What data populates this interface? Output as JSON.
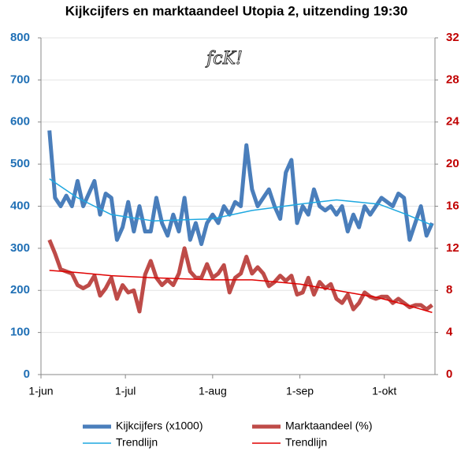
{
  "chart_data": {
    "type": "line",
    "title": "Kijkcijfers en marktaandeel Utopia 2,  uitzending 19:30",
    "logo": "fcK!",
    "x": [
      3,
      5,
      7,
      9,
      11,
      13,
      15,
      17,
      19,
      21,
      23,
      25,
      27,
      29,
      31,
      33,
      35,
      37,
      39,
      41,
      43,
      45,
      47,
      49,
      51,
      53,
      55,
      57,
      59,
      61,
      63,
      65,
      67,
      69,
      71,
      73,
      75,
      77,
      79,
      81,
      83,
      85,
      87,
      89,
      91,
      93,
      95,
      97,
      99,
      101,
      103,
      105,
      107,
      109,
      111,
      113,
      115,
      117,
      119,
      121,
      123,
      125,
      127,
      129,
      131,
      133,
      135,
      137,
      139
    ],
    "xlim": [
      0,
      140
    ],
    "xticks": [
      {
        "value": 0,
        "label": "1-jun"
      },
      {
        "value": 30,
        "label": "1-jul"
      },
      {
        "value": 61,
        "label": "1-aug"
      },
      {
        "value": 92,
        "label": "1-sep"
      },
      {
        "value": 122,
        "label": "1-okt"
      }
    ],
    "ylim": [
      0,
      800
    ],
    "yticks": [
      0,
      100,
      200,
      300,
      400,
      500,
      600,
      700,
      800
    ],
    "y2lim": [
      0,
      32
    ],
    "y2ticks": [
      0,
      4,
      8,
      12,
      16,
      20,
      24,
      28,
      32
    ],
    "y_color": "#1f6fb5",
    "y2_color": "#c00000",
    "grid": true,
    "legend": "bottom",
    "series": [
      {
        "name": "Kijkcijfers (x1000)",
        "color": "#4a7ebb",
        "width": 5,
        "values": [
          580,
          420,
          400,
          425,
          400,
          460,
          400,
          430,
          460,
          380,
          430,
          420,
          320,
          350,
          410,
          340,
          400,
          340,
          340,
          420,
          360,
          330,
          380,
          340,
          420,
          320,
          360,
          310,
          360,
          380,
          360,
          400,
          380,
          410,
          400,
          545,
          440,
          400,
          420,
          440,
          400,
          370,
          480,
          510,
          360,
          400,
          380,
          440,
          400,
          390,
          400,
          380,
          400,
          340,
          380,
          350,
          400,
          380,
          400,
          420,
          410,
          400,
          430,
          420,
          320,
          360,
          400,
          330,
          360
        ]
      },
      {
        "name": "Marktaandeel (%)",
        "color": "#be4b48",
        "width": 5,
        "axis": "y2",
        "values": [
          12.8,
          11.5,
          10,
          9.8,
          9.6,
          8.5,
          8.2,
          8.5,
          9.4,
          7.5,
          8.2,
          9.2,
          7.2,
          8.5,
          7.8,
          8,
          6,
          9.5,
          10.8,
          9.2,
          8.5,
          9,
          8.5,
          9.6,
          12,
          9.8,
          9.2,
          9.2,
          10.5,
          9.2,
          9.6,
          10.4,
          7.8,
          9.2,
          9.6,
          11.2,
          9.6,
          10.2,
          9.6,
          8.4,
          8.8,
          9.4,
          8.9,
          9.4,
          7.6,
          7.8,
          9.2,
          7.6,
          8.8,
          8.2,
          8.6,
          7.2,
          6.8,
          7.6,
          6.2,
          6.8,
          7.8,
          7.4,
          7.2,
          7.4,
          7.4,
          6.8,
          7.2,
          6.8,
          6.4,
          6.6,
          6.6,
          6.2,
          6.6
        ]
      },
      {
        "name": "Trendlijn",
        "color": "#1fa8e0",
        "width": 1.5,
        "x": [
          3,
          13,
          25,
          40,
          61,
          75,
          92,
          105,
          120,
          130,
          139
        ],
        "values": [
          465,
          420,
          380,
          365,
          370,
          390,
          405,
          415,
          405,
          380,
          355
        ]
      },
      {
        "name": "Trendlijn",
        "color": "#e00000",
        "width": 1.5,
        "axis": "y2",
        "x": [
          3,
          13,
          25,
          40,
          61,
          75,
          92,
          105,
          120,
          130,
          139
        ],
        "values": [
          9.9,
          9.7,
          9.4,
          9.2,
          9.0,
          9.0,
          8.6,
          8.0,
          7.3,
          6.6,
          5.9
        ]
      }
    ]
  }
}
